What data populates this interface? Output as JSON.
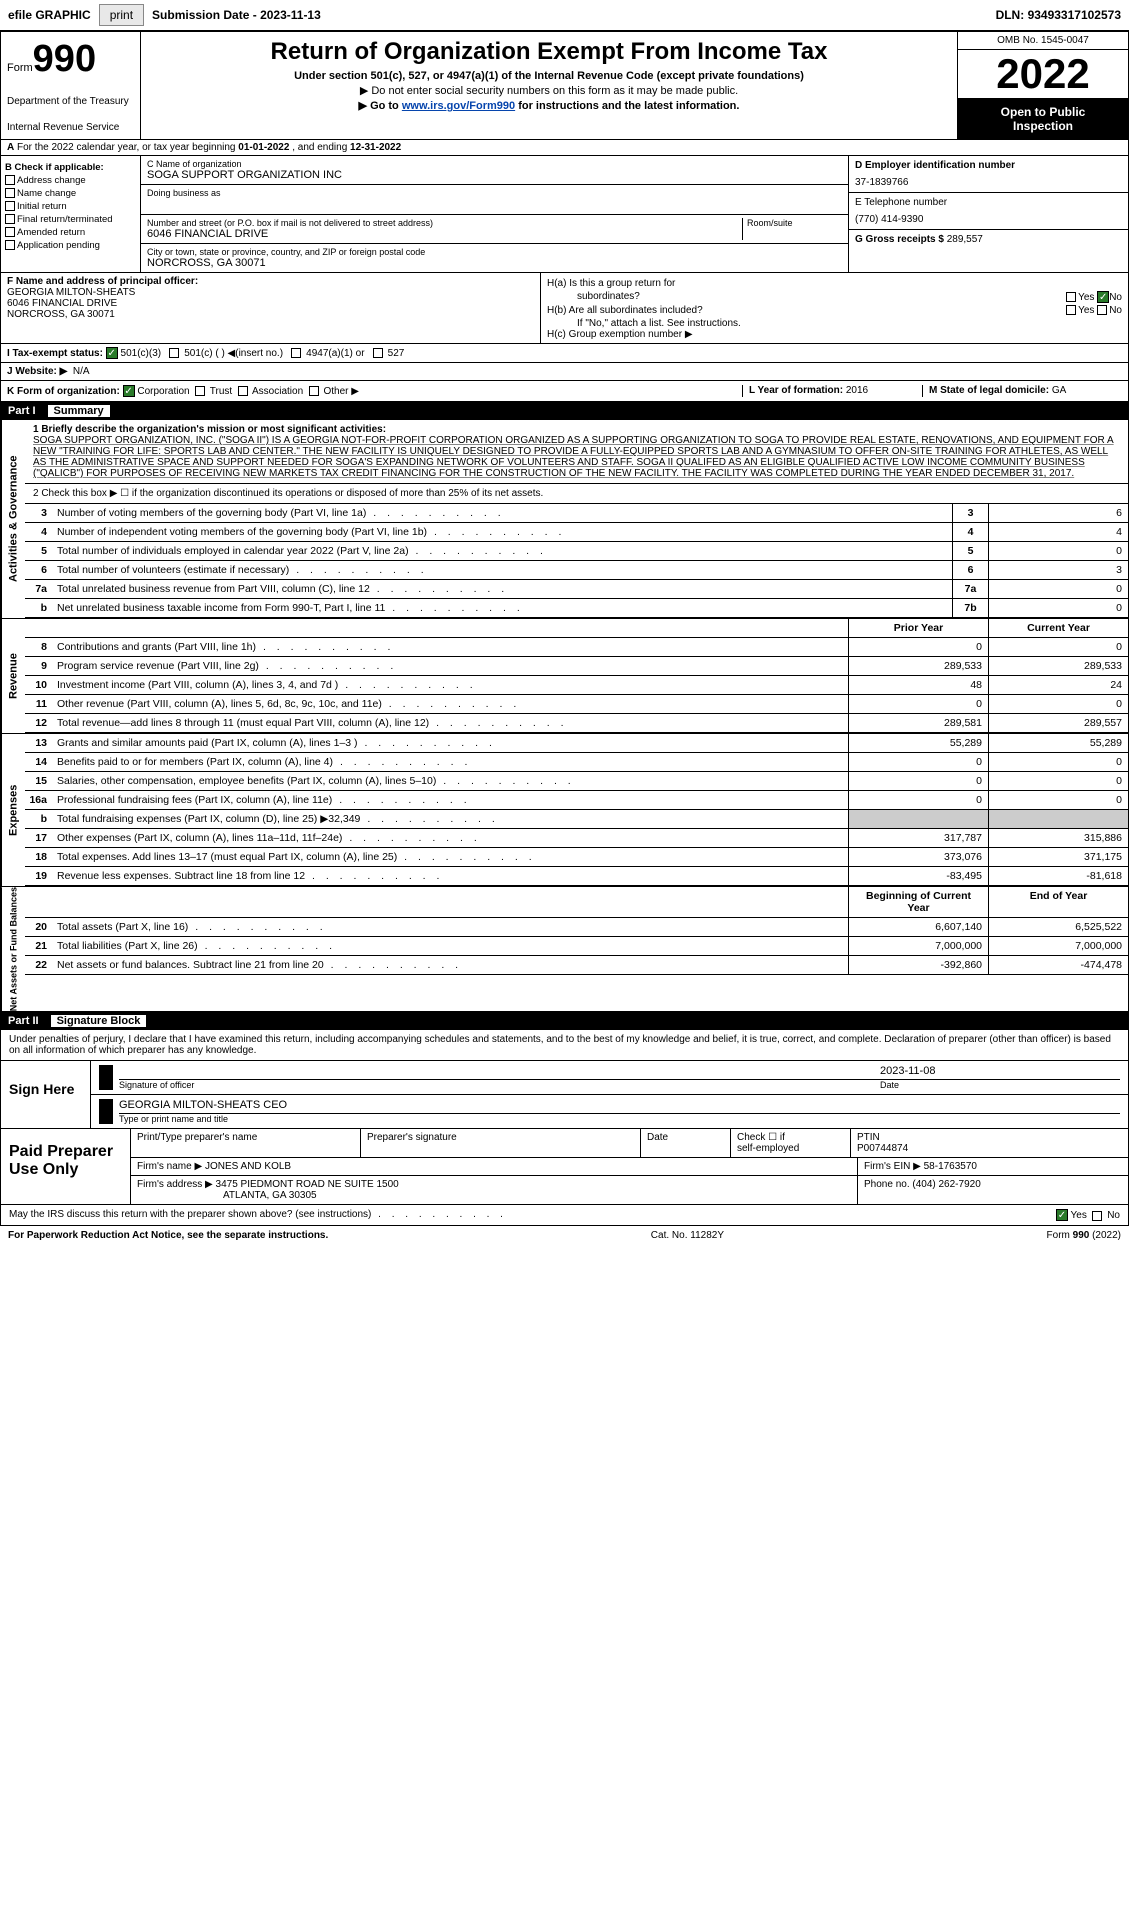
{
  "topbar": {
    "efile": "efile GRAPHIC",
    "print": "print",
    "subdate_label": "Submission Date - ",
    "subdate": "2023-11-13",
    "dln_label": "DLN: ",
    "dln": "93493317102573"
  },
  "header": {
    "form_label": "Form",
    "form_num": "990",
    "dept1": "Department of the Treasury",
    "dept2": "Internal Revenue Service",
    "title": "Return of Organization Exempt From Income Tax",
    "sub1": "Under section 501(c), 527, or 4947(a)(1) of the Internal Revenue Code (except private foundations)",
    "sub2a": "▶ Do not enter social security numbers on this form as it may be made public.",
    "sub3a": "▶ Go to ",
    "sub3link": "www.irs.gov/Form990",
    "sub3b": " for instructions and the latest information.",
    "omb": "OMB No. 1545-0047",
    "year": "2022",
    "inspect1": "Open to Public",
    "inspect2": "Inspection"
  },
  "row_a": {
    "a": "A",
    "text": "For the 2022 calendar year, or tax year beginning ",
    "begin": "01-01-2022",
    "mid": " , and ending ",
    "end": "12-31-2022"
  },
  "col_b": {
    "label": "B Check if applicable:",
    "items": [
      "Address change",
      "Name change",
      "Initial return",
      "Final return/terminated",
      "Amended return",
      "Application pending"
    ]
  },
  "col_c": {
    "c_label": "C Name of organization",
    "c_val": "SOGA SUPPORT ORGANIZATION INC",
    "dba_label": "Doing business as",
    "dba_val": "",
    "addr_label": "Number and street (or P.O. box if mail is not delivered to street address)",
    "room_label": "Room/suite",
    "addr_val": "6046 FINANCIAL DRIVE",
    "city_label": "City or town, state or province, country, and ZIP or foreign postal code",
    "city_val": "NORCROSS, GA  30071"
  },
  "col_d": {
    "d_label": "D Employer identification number",
    "d_val": "37-1839766",
    "e_label": "E Telephone number",
    "e_val": "(770) 414-9390",
    "g_label": "G Gross receipts $ ",
    "g_val": "289,557"
  },
  "row_f": {
    "f_label": "F  Name and address of principal officer:",
    "f_name": "GEORGIA MILTON-SHEATS",
    "f_addr1": "6046 FINANCIAL DRIVE",
    "f_addr2": "NORCROSS, GA  30071",
    "ha": "H(a)  Is this a group return for",
    "ha2": "subordinates?",
    "hb": "H(b)  Are all subordinates included?",
    "hb_note": "If \"No,\" attach a list. See instructions.",
    "hc": "H(c)  Group exemption number ▶",
    "yes": "Yes",
    "no": "No"
  },
  "row_i": {
    "label": "I  Tax-exempt status:",
    "opt1": "501(c)(3)",
    "opt2": "501(c) (  ) ◀(insert no.)",
    "opt3": "4947(a)(1) or",
    "opt4": "527"
  },
  "row_j": {
    "label": "J  Website: ▶",
    "val": "N/A"
  },
  "row_k": {
    "label": "K Form of organization:",
    "opts": [
      "Corporation",
      "Trust",
      "Association",
      "Other ▶"
    ],
    "l_label": "L Year of formation: ",
    "l_val": "2016",
    "m_label": "M State of legal domicile: ",
    "m_val": "GA"
  },
  "part1": {
    "num": "Part I",
    "title": "Summary"
  },
  "mission": {
    "label": "1  Briefly describe the organization's mission or most significant activities:",
    "text": "SOGA SUPPORT ORGANIZATION, INC. (\"SOGA II\") IS A GEORGIA NOT-FOR-PROFIT CORPORATION ORGANIZED AS A SUPPORTING ORGANIZATION TO SOGA TO PROVIDE REAL ESTATE, RENOVATIONS, AND EQUIPMENT FOR A NEW \"TRAINING FOR LIFE: SPORTS LAB AND CENTER.\" THE NEW FACILITY IS UNIQUELY DESIGNED TO PROVIDE A FULLY-EQUIPPED SPORTS LAB AND A GYMNASIUM TO OFFER ON-SITE TRAINING FOR ATHLETES, AS WELL AS THE ADMINISTRATIVE SPACE AND SUPPORT NEEDED FOR SOGA'S EXPANDING NETWORK OF VOLUNTEERS AND STAFF. SOGA II QUALIFED AS AN ELIGIBLE QUALIFIED ACTIVE LOW INCOME COMMUNITY BUSINESS (\"QALICB\") FOR PURPOSES OF RECEIVING NEW MARKETS TAX CREDIT FINANCING FOR THE CONSTRUCTION OF THE NEW FACILITY. THE FACILITY WAS COMPLETED DURING THE YEAR ENDED DECEMBER 31, 2017."
  },
  "line2": "2  Check this box ▶ ☐ if the organization discontinued its operations or disposed of more than 25% of its net assets.",
  "single_col": [
    {
      "n": "3",
      "d": "Number of voting members of the governing body (Part VI, line 1a)",
      "cn": "3",
      "v": "6"
    },
    {
      "n": "4",
      "d": "Number of independent voting members of the governing body (Part VI, line 1b)",
      "cn": "4",
      "v": "4"
    },
    {
      "n": "5",
      "d": "Total number of individuals employed in calendar year 2022 (Part V, line 2a)",
      "cn": "5",
      "v": "0"
    },
    {
      "n": "6",
      "d": "Total number of volunteers (estimate if necessary)",
      "cn": "6",
      "v": "3"
    },
    {
      "n": "7a",
      "d": "Total unrelated business revenue from Part VIII, column (C), line 12",
      "cn": "7a",
      "v": "0"
    },
    {
      "n": "b",
      "d": "Net unrelated business taxable income from Form 990-T, Part I, line 11",
      "cn": "7b",
      "v": "0"
    }
  ],
  "col_hdr": {
    "prior": "Prior Year",
    "current": "Current Year"
  },
  "revenue": [
    {
      "n": "8",
      "d": "Contributions and grants (Part VIII, line 1h)",
      "p": "0",
      "c": "0"
    },
    {
      "n": "9",
      "d": "Program service revenue (Part VIII, line 2g)",
      "p": "289,533",
      "c": "289,533"
    },
    {
      "n": "10",
      "d": "Investment income (Part VIII, column (A), lines 3, 4, and 7d )",
      "p": "48",
      "c": "24"
    },
    {
      "n": "11",
      "d": "Other revenue (Part VIII, column (A), lines 5, 6d, 8c, 9c, 10c, and 11e)",
      "p": "0",
      "c": "0"
    },
    {
      "n": "12",
      "d": "Total revenue—add lines 8 through 11 (must equal Part VIII, column (A), line 12)",
      "p": "289,581",
      "c": "289,557"
    }
  ],
  "expenses": [
    {
      "n": "13",
      "d": "Grants and similar amounts paid (Part IX, column (A), lines 1–3 )",
      "p": "55,289",
      "c": "55,289"
    },
    {
      "n": "14",
      "d": "Benefits paid to or for members (Part IX, column (A), line 4)",
      "p": "0",
      "c": "0"
    },
    {
      "n": "15",
      "d": "Salaries, other compensation, employee benefits (Part IX, column (A), lines 5–10)",
      "p": "0",
      "c": "0"
    },
    {
      "n": "16a",
      "d": "Professional fundraising fees (Part IX, column (A), line 11e)",
      "p": "0",
      "c": "0"
    },
    {
      "n": "b",
      "d": "Total fundraising expenses (Part IX, column (D), line 25) ▶32,349",
      "p": "",
      "c": "",
      "grey": true
    },
    {
      "n": "17",
      "d": "Other expenses (Part IX, column (A), lines 11a–11d, 11f–24e)",
      "p": "317,787",
      "c": "315,886"
    },
    {
      "n": "18",
      "d": "Total expenses. Add lines 13–17 (must equal Part IX, column (A), line 25)",
      "p": "373,076",
      "c": "371,175"
    },
    {
      "n": "19",
      "d": "Revenue less expenses. Subtract line 18 from line 12",
      "p": "-83,495",
      "c": "-81,618"
    }
  ],
  "col_hdr2": {
    "begin": "Beginning of Current Year",
    "end": "End of Year"
  },
  "netassets": [
    {
      "n": "20",
      "d": "Total assets (Part X, line 16)",
      "p": "6,607,140",
      "c": "6,525,522"
    },
    {
      "n": "21",
      "d": "Total liabilities (Part X, line 26)",
      "p": "7,000,000",
      "c": "7,000,000"
    },
    {
      "n": "22",
      "d": "Net assets or fund balances. Subtract line 21 from line 20",
      "p": "-392,860",
      "c": "-474,478"
    }
  ],
  "vtabs": {
    "ag": "Activities & Governance",
    "rev": "Revenue",
    "exp": "Expenses",
    "na": "Net Assets or Fund Balances"
  },
  "part2": {
    "num": "Part II",
    "title": "Signature Block"
  },
  "decl": "Under penalties of perjury, I declare that I have examined this return, including accompanying schedules and statements, and to the best of my knowledge and belief, it is true, correct, and complete. Declaration of preparer (other than officer) is based on all information of which preparer has any knowledge.",
  "sign": {
    "label": "Sign Here",
    "sig_officer": "Signature of officer",
    "date_label": "Date",
    "date": "2023-11-08",
    "name": "GEORGIA MILTON-SHEATS CEO",
    "name_label": "Type or print name and title"
  },
  "prep": {
    "label": "Paid Preparer Use Only",
    "h1": "Print/Type preparer's name",
    "h2": "Preparer's signature",
    "h3": "Date",
    "h4a": "Check ☐ if",
    "h4b": "self-employed",
    "h5": "PTIN",
    "ptin": "P00744874",
    "firm_label": "Firm's name    ▶ ",
    "firm": "JONES AND KOLB",
    "ein_label": "Firm's EIN ▶ ",
    "ein": "58-1763570",
    "addr_label": "Firm's address ▶ ",
    "addr1": "3475 PIEDMONT ROAD NE SUITE 1500",
    "addr2": "ATLANTA, GA  30305",
    "phone_label": "Phone no. ",
    "phone": "(404) 262-7920"
  },
  "bottom": {
    "q": "May the IRS discuss this return with the preparer shown above? (see instructions)",
    "yes": "Yes",
    "no": "No"
  },
  "footer": {
    "left": "For Paperwork Reduction Act Notice, see the separate instructions.",
    "mid": "Cat. No. 11282Y",
    "right": "Form 990 (2022)"
  }
}
